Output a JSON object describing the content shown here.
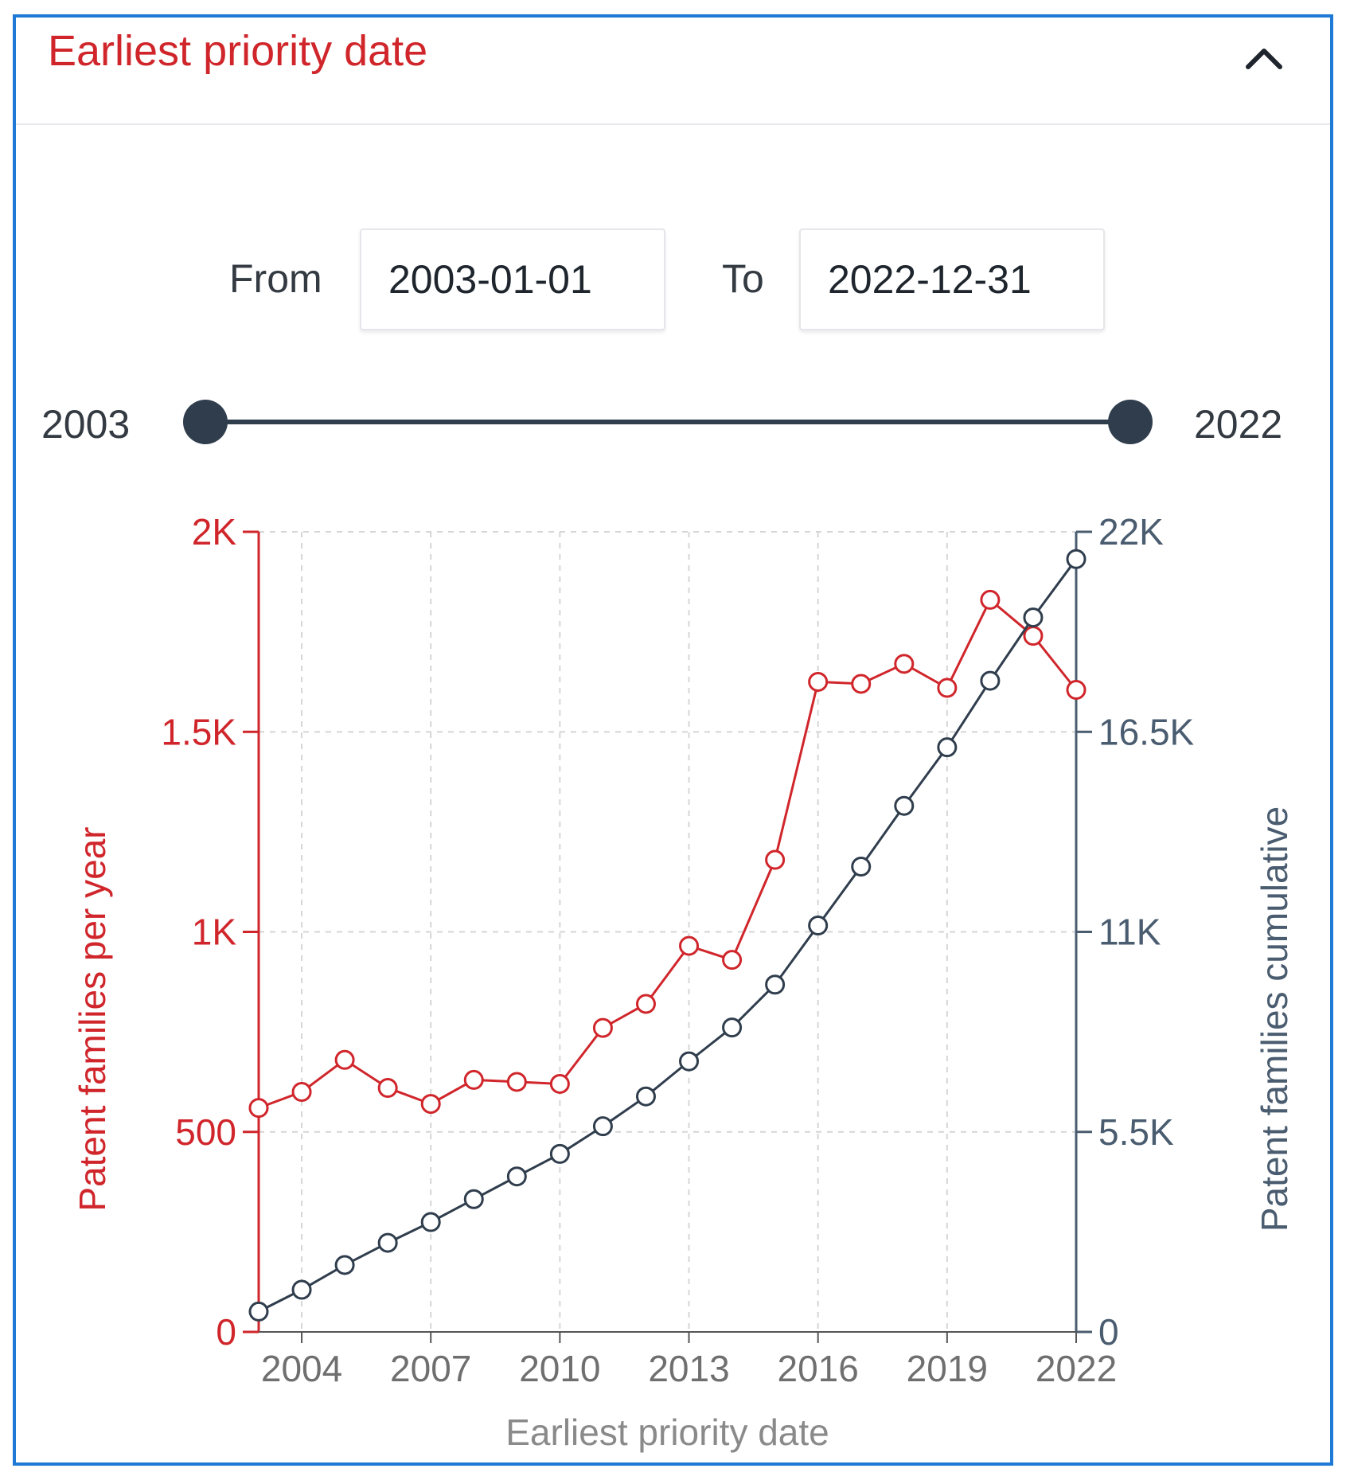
{
  "header": {
    "title": "Earliest priority date",
    "collapse_icon": "chevron-up-icon"
  },
  "range": {
    "from_label": "From",
    "from_value": "2003-01-01",
    "to_label": "To",
    "to_value": "2022-12-31"
  },
  "slider": {
    "min_label": "2003",
    "max_label": "2022",
    "min_value": 2003,
    "max_value": 2022
  },
  "colors": {
    "accent_red": "#d0262b",
    "navy": "#2f3d4d",
    "axis_navy": "#4a5c6f",
    "grid": "#d6d6d6"
  },
  "chart_data": {
    "type": "line",
    "xlabel": "Earliest priority date",
    "x_ticks": [
      "2004",
      "2007",
      "2010",
      "2013",
      "2016",
      "2019",
      "2022"
    ],
    "x_range": [
      2003,
      2022
    ],
    "grid": true,
    "left_axis": {
      "label": "Patent families per year",
      "ticks": [
        "0",
        "500",
        "1K",
        "1.5K",
        "2K"
      ],
      "range": [
        0,
        2000
      ]
    },
    "right_axis": {
      "label": "Patent families cumulative",
      "ticks": [
        "0",
        "5.5K",
        "11K",
        "16.5K",
        "22K"
      ],
      "range": [
        0,
        22000
      ]
    },
    "x": [
      2003,
      2004,
      2005,
      2006,
      2007,
      2008,
      2009,
      2010,
      2011,
      2012,
      2013,
      2014,
      2015,
      2016,
      2017,
      2018,
      2019,
      2020,
      2021,
      2022
    ],
    "series": [
      {
        "axis": "left",
        "color": "#d0262b",
        "values": [
          560,
          600,
          680,
          610,
          570,
          630,
          625,
          620,
          760,
          820,
          965,
          930,
          1180,
          1625,
          1620,
          1670,
          1610,
          1830,
          1740,
          1605
        ]
      },
      {
        "axis": "right",
        "color": "#2f3d4d",
        "values": [
          560,
          1160,
          1840,
          2450,
          3020,
          3650,
          4275,
          4895,
          5655,
          6475,
          7440,
          8370,
          9550,
          11175,
          12795,
          14465,
          16075,
          17905,
          19645,
          21250
        ]
      }
    ]
  }
}
